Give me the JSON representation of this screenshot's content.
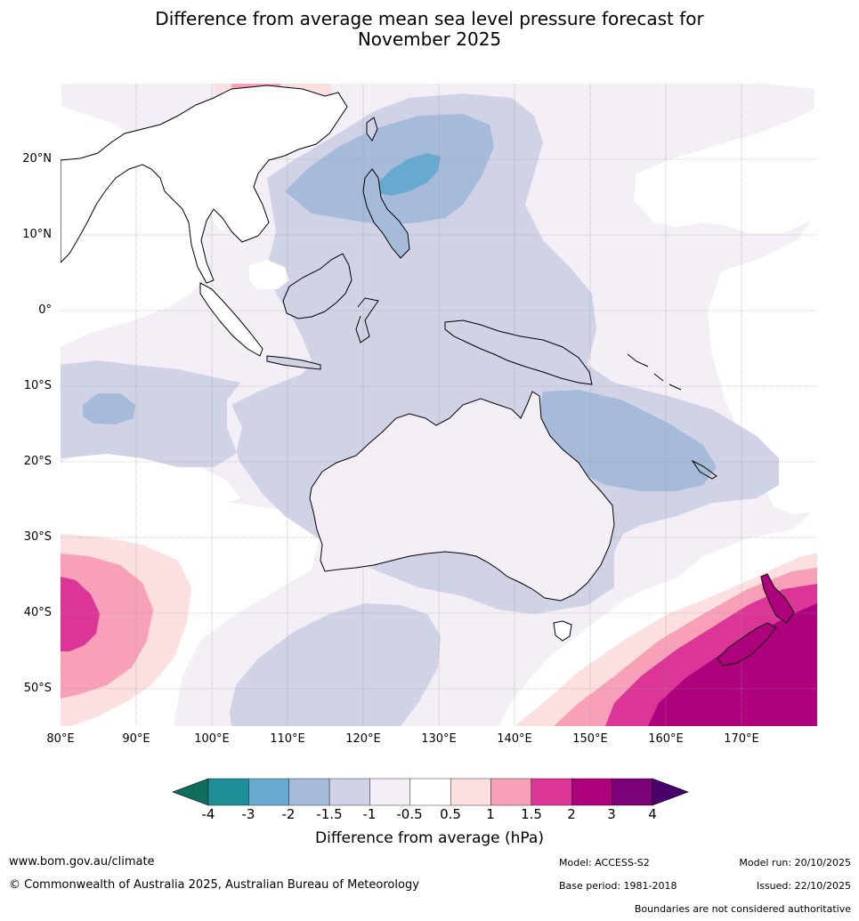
{
  "title_line1": "Difference from average mean sea level pressure forecast for",
  "title_line2": "November 2025",
  "map": {
    "region": "Asia-Pacific and Australia",
    "lon_range": [
      80,
      180
    ],
    "lat_range": [
      -55,
      30
    ],
    "lat_labels": [
      "20°N",
      "10°N",
      "0°",
      "10°S",
      "20°S",
      "30°S",
      "40°S",
      "50°S"
    ],
    "lon_labels": [
      "80°E",
      "90°E",
      "100°E",
      "110°E",
      "120°E",
      "130°E",
      "140°E",
      "150°E",
      "160°E",
      "170°E"
    ]
  },
  "colorbar": {
    "title": "Difference from average (hPa)",
    "ticks": [
      "-4",
      "-3",
      "-2",
      "-1.5",
      "-1",
      "-0.5",
      "0.5",
      "1",
      "1.5",
      "2",
      "3",
      "4"
    ],
    "colors": [
      "#0d6e5e",
      "#1e8f96",
      "#68a9d0",
      "#a6bbd9",
      "#d0d2e6",
      "#f4eef6",
      "#ffffff",
      "#fcdfe0",
      "#f8a0b8",
      "#dc3598",
      "#ae017e",
      "#7a0177",
      "#49006a"
    ]
  },
  "footer": {
    "website": "www.bom.gov.au/climate",
    "copyright": "© Commonwealth of Australia 2025, Australian Bureau of Meteorology",
    "model": "Model: ACCESS-S2",
    "base_period": "Base period: 1981-2018",
    "model_run": "Model run: 20/10/2025",
    "issued": "Issued: 22/10/2025",
    "disclaimer": "Boundaries are not considered authoritative"
  }
}
